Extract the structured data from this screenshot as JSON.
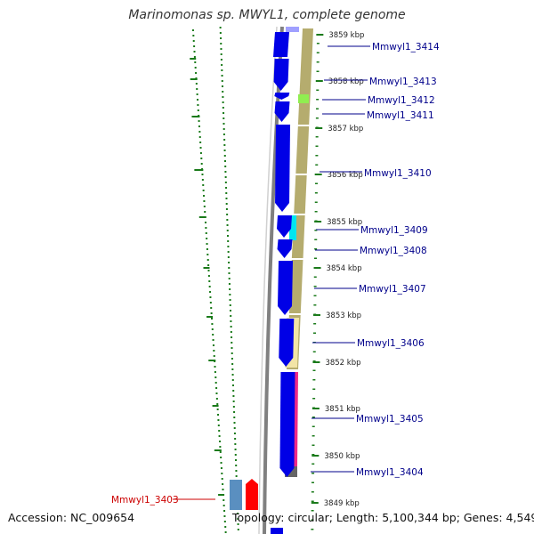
{
  "header": {
    "title": "Marinomonas sp. MWYL1, complete genome"
  },
  "footer": {
    "accession": "Accession: NC_009654",
    "summary": "Topology: circular; Length: 5,100,344 bp; Genes: 4,549"
  },
  "colors": {
    "forward_gene": "#0000e6",
    "reverse_gene": "#1111dd",
    "backbone": "#808080",
    "feature_track": "#b5ac6e",
    "gc_ticks": "#1a7a1a",
    "label_forward": "#00008b",
    "label_reverse": "#cc0000"
  },
  "ruler": {
    "unit": "kbp",
    "ticks": [
      {
        "label": "3859 kbp"
      },
      {
        "label": "3858 kbp"
      },
      {
        "label": "3857 kbp"
      },
      {
        "label": "3856 kbp"
      },
      {
        "label": "3855 kbp"
      },
      {
        "label": "3854 kbp"
      },
      {
        "label": "3853 kbp"
      },
      {
        "label": "3852 kbp"
      },
      {
        "label": "3851 kbp"
      },
      {
        "label": "3850 kbp"
      },
      {
        "label": "3849 kbp"
      }
    ]
  },
  "genes": [
    {
      "label": "Mmwyl1_3414",
      "strand": "forward"
    },
    {
      "label": "Mmwyl1_3413",
      "strand": "forward"
    },
    {
      "label": "Mmwyl1_3412",
      "strand": "forward"
    },
    {
      "label": "Mmwyl1_3411",
      "strand": "forward"
    },
    {
      "label": "Mmwyl1_3410",
      "strand": "forward"
    },
    {
      "label": "Mmwyl1_3409",
      "strand": "forward"
    },
    {
      "label": "Mmwyl1_3408",
      "strand": "forward"
    },
    {
      "label": "Mmwyl1_3407",
      "strand": "forward"
    },
    {
      "label": "Mmwyl1_3406",
      "strand": "forward"
    },
    {
      "label": "Mmwyl1_3405",
      "strand": "forward"
    },
    {
      "label": "Mmwyl1_3404",
      "strand": "forward"
    },
    {
      "label": "Mmwyl1_3403",
      "strand": "reverse"
    }
  ]
}
